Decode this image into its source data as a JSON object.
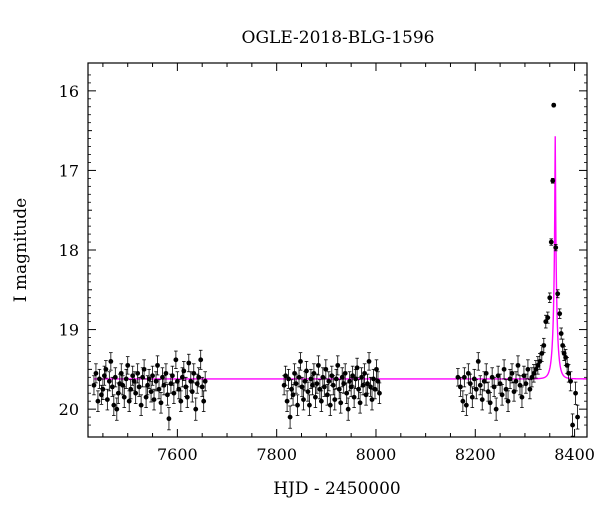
{
  "chart_data": {
    "type": "scatter",
    "title": "OGLE-2018-BLG-1596",
    "xlabel": "HJD - 2450000",
    "ylabel": "I magnitude",
    "xlim": [
      7420,
      8425
    ],
    "ylim": [
      20.35,
      15.65
    ],
    "y_inverted": true,
    "grid": false,
    "x_ticks": [
      7600,
      7800,
      8000,
      8200,
      8400
    ],
    "x_tick_labels": [
      "7600",
      "7800",
      "8000",
      "8200",
      "8400"
    ],
    "y_ticks": [
      16,
      17,
      18,
      19,
      20
    ],
    "y_tick_labels": [
      "16",
      "17",
      "18",
      "19",
      "20"
    ],
    "colors": {
      "data": "#000000",
      "model": "#ff00ff"
    },
    "model": {
      "baseline": 19.62,
      "t0": 8361,
      "peak_mag": 16.57,
      "tE": 7.2
    },
    "series": [
      {
        "points": [
          [
            7432,
            19.7,
            0.12
          ],
          [
            7436,
            19.55,
            0.12
          ],
          [
            7440,
            19.9,
            0.13
          ],
          [
            7443,
            19.62,
            0.12
          ],
          [
            7447,
            19.82,
            0.12
          ],
          [
            7450,
            19.75,
            0.13
          ],
          [
            7453,
            19.58,
            0.12
          ],
          [
            7456,
            19.5,
            0.11
          ],
          [
            7459,
            19.88,
            0.13
          ],
          [
            7463,
            19.65,
            0.12
          ],
          [
            7466,
            19.4,
            0.11
          ],
          [
            7469,
            19.72,
            0.12
          ],
          [
            7472,
            19.95,
            0.13
          ],
          [
            7475,
            19.6,
            0.12
          ],
          [
            7478,
            20.0,
            0.14
          ],
          [
            7481,
            19.8,
            0.13
          ],
          [
            7484,
            19.68,
            0.12
          ],
          [
            7487,
            19.55,
            0.12
          ],
          [
            7490,
            19.7,
            0.12
          ],
          [
            7493,
            19.85,
            0.13
          ],
          [
            7497,
            19.62,
            0.12
          ],
          [
            7500,
            19.45,
            0.11
          ],
          [
            7503,
            19.9,
            0.13
          ],
          [
            7506,
            19.75,
            0.12
          ],
          [
            7510,
            19.58,
            0.12
          ],
          [
            7513,
            19.65,
            0.12
          ],
          [
            7516,
            19.8,
            0.13
          ],
          [
            7520,
            19.55,
            0.12
          ],
          [
            7523,
            19.72,
            0.12
          ],
          [
            7527,
            19.95,
            0.13
          ],
          [
            7530,
            19.6,
            0.12
          ],
          [
            7533,
            19.5,
            0.12
          ],
          [
            7537,
            19.85,
            0.13
          ],
          [
            7540,
            19.7,
            0.12
          ],
          [
            7543,
            19.62,
            0.12
          ],
          [
            7547,
            19.78,
            0.13
          ],
          [
            7550,
            19.58,
            0.12
          ],
          [
            7553,
            19.88,
            0.13
          ],
          [
            7557,
            19.65,
            0.12
          ],
          [
            7560,
            19.45,
            0.12
          ],
          [
            7563,
            19.75,
            0.12
          ],
          [
            7567,
            19.92,
            0.13
          ],
          [
            7570,
            19.6,
            0.12
          ],
          [
            7573,
            19.7,
            0.12
          ],
          [
            7577,
            19.55,
            0.12
          ],
          [
            7580,
            19.82,
            0.13
          ],
          [
            7583,
            20.12,
            0.14
          ],
          [
            7587,
            19.68,
            0.12
          ],
          [
            7590,
            19.58,
            0.12
          ],
          [
            7593,
            19.8,
            0.13
          ],
          [
            7597,
            19.38,
            0.11
          ],
          [
            7600,
            19.65,
            0.12
          ],
          [
            7603,
            19.75,
            0.12
          ],
          [
            7607,
            19.9,
            0.13
          ],
          [
            7610,
            19.6,
            0.12
          ],
          [
            7613,
            19.52,
            0.12
          ],
          [
            7617,
            19.72,
            0.12
          ],
          [
            7620,
            19.85,
            0.13
          ],
          [
            7623,
            19.42,
            0.11
          ],
          [
            7627,
            19.65,
            0.12
          ],
          [
            7630,
            19.78,
            0.13
          ],
          [
            7633,
            19.55,
            0.12
          ],
          [
            7637,
            20.0,
            0.14
          ],
          [
            7640,
            19.68,
            0.12
          ],
          [
            7643,
            19.6,
            0.12
          ],
          [
            7647,
            19.38,
            0.12
          ],
          [
            7650,
            19.72,
            0.12
          ],
          [
            7653,
            19.9,
            0.13
          ],
          [
            7656,
            19.65,
            0.12
          ],
          [
            7815,
            19.7,
            0.12
          ],
          [
            7818,
            19.58,
            0.12
          ],
          [
            7821,
            19.9,
            0.13
          ],
          [
            7824,
            19.62,
            0.12
          ],
          [
            7827,
            20.1,
            0.14
          ],
          [
            7830,
            19.75,
            0.12
          ],
          [
            7833,
            19.82,
            0.13
          ],
          [
            7836,
            19.55,
            0.12
          ],
          [
            7839,
            19.68,
            0.12
          ],
          [
            7842,
            19.95,
            0.13
          ],
          [
            7845,
            19.6,
            0.12
          ],
          [
            7848,
            19.4,
            0.11
          ],
          [
            7851,
            19.72,
            0.12
          ],
          [
            7854,
            19.88,
            0.13
          ],
          [
            7857,
            19.65,
            0.12
          ],
          [
            7860,
            19.52,
            0.12
          ],
          [
            7863,
            19.78,
            0.12
          ],
          [
            7866,
            19.95,
            0.13
          ],
          [
            7869,
            19.62,
            0.12
          ],
          [
            7872,
            19.7,
            0.12
          ],
          [
            7875,
            19.55,
            0.12
          ],
          [
            7878,
            19.85,
            0.13
          ],
          [
            7881,
            19.68,
            0.12
          ],
          [
            7884,
            19.45,
            0.12
          ],
          [
            7887,
            19.75,
            0.12
          ],
          [
            7890,
            19.9,
            0.13
          ],
          [
            7893,
            19.6,
            0.12
          ],
          [
            7896,
            19.72,
            0.12
          ],
          [
            7899,
            19.5,
            0.12
          ],
          [
            7902,
            19.82,
            0.13
          ],
          [
            7905,
            19.65,
            0.12
          ],
          [
            7908,
            19.95,
            0.13
          ],
          [
            7911,
            19.58,
            0.12
          ],
          [
            7914,
            19.7,
            0.12
          ],
          [
            7917,
            19.88,
            0.13
          ],
          [
            7920,
            19.62,
            0.12
          ],
          [
            7923,
            19.45,
            0.12
          ],
          [
            7926,
            19.75,
            0.12
          ],
          [
            7929,
            19.92,
            0.13
          ],
          [
            7932,
            19.6,
            0.12
          ],
          [
            7935,
            19.68,
            0.12
          ],
          [
            7938,
            19.55,
            0.12
          ],
          [
            7941,
            19.8,
            0.13
          ],
          [
            7944,
            20.0,
            0.14
          ],
          [
            7947,
            19.65,
            0.12
          ],
          [
            7950,
            19.72,
            0.12
          ],
          [
            7953,
            19.58,
            0.12
          ],
          [
            7956,
            19.85,
            0.13
          ],
          [
            7959,
            19.62,
            0.12
          ],
          [
            7962,
            19.48,
            0.12
          ],
          [
            7965,
            19.75,
            0.12
          ],
          [
            7968,
            19.92,
            0.13
          ],
          [
            7971,
            19.6,
            0.12
          ],
          [
            7974,
            19.7,
            0.12
          ],
          [
            7977,
            19.55,
            0.12
          ],
          [
            7980,
            19.82,
            0.13
          ],
          [
            7983,
            19.68,
            0.12
          ],
          [
            7986,
            19.4,
            0.11
          ],
          [
            7989,
            19.72,
            0.12
          ],
          [
            7992,
            19.88,
            0.13
          ],
          [
            7995,
            19.62,
            0.12
          ],
          [
            7998,
            19.75,
            0.12
          ],
          [
            8001,
            19.5,
            0.12
          ],
          [
            8004,
            19.65,
            0.12
          ],
          [
            8007,
            19.8,
            0.13
          ],
          [
            8165,
            19.6,
            0.11
          ],
          [
            8170,
            19.72,
            0.12
          ],
          [
            8175,
            19.9,
            0.13
          ],
          [
            8178,
            19.6,
            0.12
          ],
          [
            8182,
            19.95,
            0.13
          ],
          [
            8186,
            19.55,
            0.12
          ],
          [
            8190,
            19.68,
            0.12
          ],
          [
            8194,
            19.85,
            0.13
          ],
          [
            8198,
            19.62,
            0.12
          ],
          [
            8202,
            19.75,
            0.12
          ],
          [
            8206,
            19.4,
            0.11
          ],
          [
            8210,
            19.7,
            0.12
          ],
          [
            8214,
            19.88,
            0.13
          ],
          [
            8218,
            19.65,
            0.12
          ],
          [
            8222,
            19.55,
            0.12
          ],
          [
            8226,
            19.78,
            0.12
          ],
          [
            8230,
            19.92,
            0.13
          ],
          [
            8234,
            19.6,
            0.12
          ],
          [
            8238,
            19.72,
            0.12
          ],
          [
            8242,
            20.0,
            0.14
          ],
          [
            8246,
            19.58,
            0.12
          ],
          [
            8250,
            19.68,
            0.12
          ],
          [
            8254,
            19.82,
            0.13
          ],
          [
            8258,
            19.5,
            0.12
          ],
          [
            8262,
            19.75,
            0.12
          ],
          [
            8266,
            19.9,
            0.13
          ],
          [
            8270,
            19.62,
            0.12
          ],
          [
            8274,
            19.55,
            0.12
          ],
          [
            8278,
            19.78,
            0.12
          ],
          [
            8282,
            19.65,
            0.12
          ],
          [
            8286,
            19.45,
            0.12
          ],
          [
            8290,
            19.7,
            0.12
          ],
          [
            8294,
            19.85,
            0.13
          ],
          [
            8298,
            19.58,
            0.12
          ],
          [
            8302,
            19.68,
            0.12
          ],
          [
            8306,
            19.5,
            0.12
          ],
          [
            8310,
            19.75,
            0.12
          ],
          [
            8314,
            19.6,
            0.12
          ],
          [
            8318,
            19.55,
            0.11
          ],
          [
            8322,
            19.5,
            0.11
          ],
          [
            8326,
            19.45,
            0.11
          ],
          [
            8330,
            19.4,
            0.1
          ],
          [
            8334,
            19.3,
            0.1
          ],
          [
            8338,
            19.2,
            0.09
          ],
          [
            8342,
            18.9,
            0.08
          ],
          [
            8346,
            18.85,
            0.07
          ],
          [
            8350,
            18.6,
            0.06
          ],
          [
            8353,
            17.9,
            0.04
          ],
          [
            8356,
            17.13,
            0.03
          ],
          [
            8358,
            16.18,
            0.02
          ],
          [
            8362,
            17.97,
            0.04
          ],
          [
            8366,
            18.55,
            0.05
          ],
          [
            8370,
            18.8,
            0.06
          ],
          [
            8373,
            19.05,
            0.07
          ],
          [
            8376,
            19.2,
            0.08
          ],
          [
            8379,
            19.3,
            0.09
          ],
          [
            8382,
            19.35,
            0.1
          ],
          [
            8385,
            19.45,
            0.1
          ],
          [
            8388,
            19.55,
            0.11
          ],
          [
            8392,
            19.65,
            0.12
          ],
          [
            8396,
            20.2,
            0.14
          ],
          [
            8402,
            19.8,
            0.14
          ],
          [
            8406,
            20.1,
            0.15
          ]
        ]
      }
    ]
  }
}
